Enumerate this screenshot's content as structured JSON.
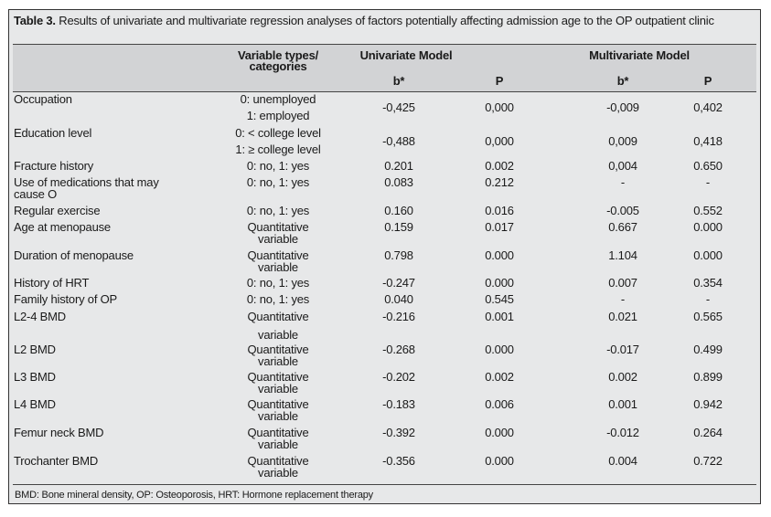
{
  "caption": {
    "label": "Table 3.",
    "text": " Results of univariate and multivariate regression analyses of factors potentially affecting admission age to the OP outpatient clinic"
  },
  "header": {
    "category": "Variable types/ categories",
    "univariate": "Univariate Model",
    "multivariate": "Multivariate Model",
    "b": "b*",
    "p": "P"
  },
  "rows": [
    {
      "name": "Occupation",
      "category": [
        "0: unemployed",
        "1: employed"
      ],
      "uni_b": "-0,425",
      "uni_p": "0,000",
      "multi_b": "-0,009",
      "multi_p": "0,402"
    },
    {
      "name": "Education level",
      "category": [
        "0: < college level",
        "1: ≥ college level"
      ],
      "uni_b": "-0,488",
      "uni_p": "0,000",
      "multi_b": "0,009",
      "multi_p": "0,418"
    },
    {
      "name": "Fracture history",
      "category": [
        "0: no, 1: yes"
      ],
      "uni_b": "0.201",
      "uni_p": "0.002",
      "multi_b": "0,004",
      "multi_p": "0.650"
    },
    {
      "name": "Use of medications that may cause O",
      "category": [
        "0: no, 1: yes"
      ],
      "uni_b": "0.083",
      "uni_p": "0.212",
      "multi_b": "-",
      "multi_p": "-"
    },
    {
      "name": "Regular exercise",
      "category": [
        "0: no, 1: yes"
      ],
      "uni_b": "0.160",
      "uni_p": "0.016",
      "multi_b": "-0.005",
      "multi_p": "0.552"
    },
    {
      "name": "Age at menopause",
      "category": [
        "Quantitative",
        "variable"
      ],
      "uni_b": "0.159",
      "uni_p": "0.017",
      "multi_b": "0.667",
      "multi_p": "0.000"
    },
    {
      "name": "Duration of menopause",
      "category": [
        "Quantitative",
        "variable"
      ],
      "uni_b": "0.798",
      "uni_p": "0.000",
      "multi_b": "1.104",
      "multi_p": "0.000"
    },
    {
      "name": "History of HRT",
      "category": [
        "0: no, 1: yes"
      ],
      "uni_b": "-0.247",
      "uni_p": "0.000",
      "multi_b": "0.007",
      "multi_p": "0.354"
    },
    {
      "name": "Family history of OP",
      "category": [
        "0: no, 1: yes"
      ],
      "uni_b": "0.040",
      "uni_p": "0.545",
      "multi_b": "-",
      "multi_p": "-"
    },
    {
      "name": "L2-4 BMD",
      "category": [
        "Quantitative",
        "variable"
      ],
      "uni_b": "-0.216",
      "uni_p": "0.001",
      "multi_b": "0.021",
      "multi_p": "0.565"
    },
    {
      "name": "L2 BMD",
      "category": [
        "Quantitative",
        "variable"
      ],
      "uni_b": "-0.268",
      "uni_p": "0.000",
      "multi_b": "-0.017",
      "multi_p": "0.499"
    },
    {
      "name": "L3 BMD",
      "category": [
        "Quantitative",
        "variable"
      ],
      "uni_b": "-0.202",
      "uni_p": "0.002",
      "multi_b": "0.002",
      "multi_p": "0.899"
    },
    {
      "name": "L4 BMD",
      "category": [
        "Quantitative",
        "variable"
      ],
      "uni_b": "-0.183",
      "uni_p": "0.006",
      "multi_b": "0.001",
      "multi_p": "0.942"
    },
    {
      "name": "Femur neck BMD",
      "category": [
        "Quantitative",
        "variable"
      ],
      "uni_b": "-0.392",
      "uni_p": "0.000",
      "multi_b": "-0.012",
      "multi_p": "0.264"
    },
    {
      "name": "Trochanter BMD",
      "category": [
        "Quantitative",
        "variable"
      ],
      "uni_b": "-0.356",
      "uni_p": "0.000",
      "multi_b": "0.004",
      "multi_p": "0.722"
    }
  ],
  "footnote": "BMD: Bone mineral density, OP: Osteoporosis, HRT: Hormone replacement therapy"
}
